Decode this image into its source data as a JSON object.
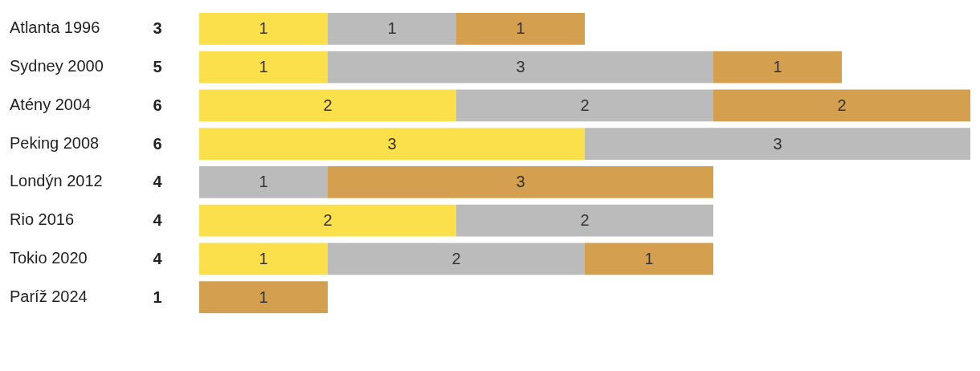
{
  "chart_data": {
    "type": "bar",
    "orientation": "horizontal",
    "stacked": true,
    "categories": [
      "Atlanta 1996",
      "Sydney 2000",
      "Atény 2004",
      "Peking 2008",
      "Londýn 2012",
      "Rio 2016",
      "Tokio 2020",
      "Paríž 2024"
    ],
    "series": [
      {
        "color": "#fbe04b",
        "values": [
          1,
          1,
          2,
          3,
          0,
          2,
          1,
          0
        ],
        "value_labels": [
          "1",
          "1",
          "2",
          "3",
          null,
          "2",
          "1",
          null
        ]
      },
      {
        "color": "#bbbbbb",
        "values": [
          1,
          3,
          2,
          3,
          1,
          2,
          2,
          0
        ],
        "value_labels": [
          "1",
          "3",
          "2",
          "3",
          "1",
          "2",
          "2",
          null
        ]
      },
      {
        "color": "#d4a04f",
        "values": [
          1,
          1,
          2,
          0,
          3,
          0,
          1,
          1
        ],
        "value_labels": [
          "1",
          "1",
          "2",
          null,
          "3",
          null,
          "1",
          "1"
        ]
      }
    ],
    "totals": [
      "3",
      "5",
      "6",
      "6",
      "4",
      "4",
      "4",
      "1"
    ],
    "xlim": [
      0,
      6
    ],
    "legend": false,
    "tick_labels": "y"
  }
}
